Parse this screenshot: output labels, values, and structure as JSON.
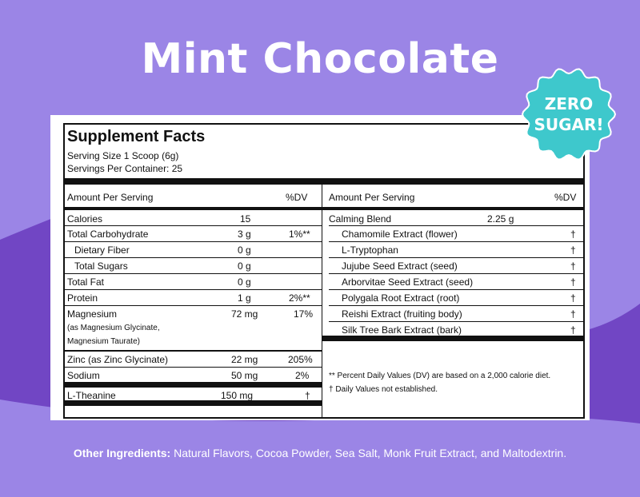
{
  "title": "Mint Chocolate",
  "badge": {
    "line1": "ZERO",
    "line2": "SUGAR!"
  },
  "colors": {
    "background": "#9b85e6",
    "wave": "#7146c4",
    "badge": "#3ec8cc"
  },
  "facts": {
    "heading": "Supplement Facts",
    "serving_size": "Serving Size 1 Scoop (6g)",
    "servings_per_container": "Servings Per Container: 25",
    "left": {
      "col_amount": "Amount Per Serving",
      "col_dv": "%DV",
      "rows": [
        {
          "name": "Calories",
          "amount": "15",
          "dv": ""
        },
        {
          "name": "Total Carbohydrate",
          "amount": "3 g",
          "dv": "1%**"
        },
        {
          "name": "Dietary Fiber",
          "amount": "0 g",
          "dv": ""
        },
        {
          "name": "Total Sugars",
          "amount": "0 g",
          "dv": ""
        },
        {
          "name": "Total Fat",
          "amount": "0 g",
          "dv": ""
        },
        {
          "name": "Protein",
          "amount": "1 g",
          "dv": "2%**"
        },
        {
          "name": "Magnesium",
          "amount": "72 mg",
          "dv": "17%",
          "sub1": "(as Magnesium Glycinate,",
          "sub2": "Magnesium Taurate)"
        },
        {
          "name": "Zinc (as Zinc Glycinate)",
          "amount": "22 mg",
          "dv": "205%"
        },
        {
          "name": "Sodium",
          "amount": "50 mg",
          "dv": "2%"
        },
        {
          "name": "L-Theanine",
          "amount": "150 mg",
          "dv": "†"
        }
      ]
    },
    "right": {
      "col_amount": "Amount Per Serving",
      "col_dv": "%DV",
      "blend_name": "Calming Blend",
      "blend_amount": "2.25 g",
      "items": [
        {
          "name": "Chamomile Extract (flower)",
          "dv": "†"
        },
        {
          "name": "L-Tryptophan",
          "dv": "†"
        },
        {
          "name": "Jujube Seed Extract (seed)",
          "dv": "†"
        },
        {
          "name": "Arborvitae Seed Extract (seed)",
          "dv": "†"
        },
        {
          "name": "Polygala Root Extract (root)",
          "dv": "†"
        },
        {
          "name": "Reishi Extract (fruiting body)",
          "dv": "†"
        },
        {
          "name": "Silk Tree Bark Extract (bark)",
          "dv": "†"
        }
      ],
      "note1": "** Percent Daily Values (DV) are based on a 2,000 calorie diet.",
      "note2": "† Daily Values not established."
    }
  },
  "other_ingredients": {
    "label": "Other Ingredients:",
    "text": " Natural Flavors, Cocoa Powder, Sea Salt, Monk Fruit Extract, and Maltodextrin."
  }
}
